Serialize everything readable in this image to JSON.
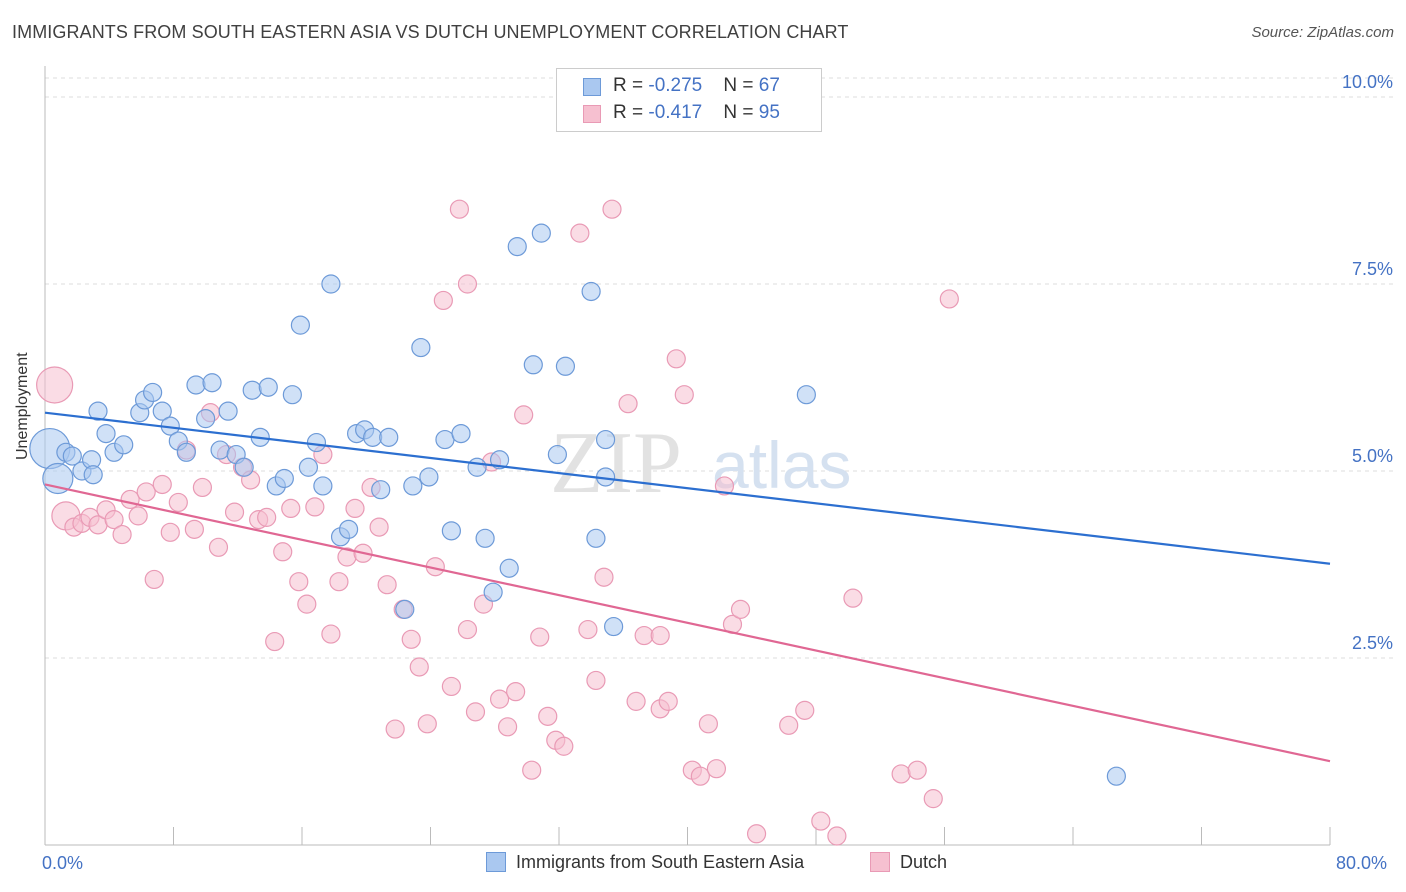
{
  "title": "IMMIGRANTS FROM SOUTH EASTERN ASIA VS DUTCH UNEMPLOYMENT CORRELATION CHART",
  "source": "Source: ZipAtlas.com",
  "watermark": {
    "zip": "ZIP",
    "atlas": "atlas"
  },
  "legend": {
    "rows": [
      {
        "r_label": "R = ",
        "r_value": "-0.275",
        "n_label": "N = ",
        "n_value": "67"
      },
      {
        "r_label": "R = ",
        "r_value": "-0.417",
        "n_label": "N = ",
        "n_value": "95"
      }
    ]
  },
  "bottom_legend": {
    "series1": "Immigrants from South Eastern Asia",
    "series2": "Dutch"
  },
  "colors": {
    "blue_fill": "#aac8f0",
    "blue_stroke": "#6d9ad8",
    "blue_line": "#2c6fd0",
    "pink_fill": "#f6c0d0",
    "pink_stroke": "#e99ab5",
    "pink_line": "#e06793",
    "axis_text": "#4472c4"
  },
  "chart_data": {
    "type": "scatter",
    "title": "IMMIGRANTS FROM SOUTH EASTERN ASIA VS DUTCH UNEMPLOYMENT CORRELATION CHART",
    "xlabel": "",
    "ylabel": "Unemployment",
    "xlim": [
      0,
      80
    ],
    "ylim": [
      0,
      10.5
    ],
    "x_tick_labels": [
      "0.0%",
      "80.0%"
    ],
    "y_ticks": [
      2.5,
      5.0,
      7.5,
      10.0
    ],
    "y_tick_labels": [
      "2.5%",
      "5.0%",
      "7.5%",
      "10.0%"
    ],
    "grid": "horizontal dashed",
    "legend_position": "top-center",
    "series": [
      {
        "name": "Immigrants from South Eastern Asia",
        "R": -0.275,
        "N": 67,
        "trend": {
          "x0": 0,
          "y0": 5.78,
          "x1": 80,
          "y1": 3.76
        },
        "points": [
          [
            0.3,
            5.3
          ],
          [
            0.8,
            4.9
          ],
          [
            1.3,
            5.25
          ],
          [
            1.7,
            5.2
          ],
          [
            2.3,
            5.0
          ],
          [
            2.9,
            5.15
          ],
          [
            3.3,
            5.8
          ],
          [
            3.8,
            5.5
          ],
          [
            4.3,
            5.25
          ],
          [
            4.9,
            5.35
          ],
          [
            5.9,
            5.78
          ],
          [
            6.2,
            5.95
          ],
          [
            6.7,
            6.05
          ],
          [
            7.3,
            5.8
          ],
          [
            7.8,
            5.6
          ],
          [
            8.3,
            5.4
          ],
          [
            8.8,
            5.25
          ],
          [
            9.4,
            6.15
          ],
          [
            10.0,
            5.7
          ],
          [
            10.4,
            6.18
          ],
          [
            10.9,
            5.28
          ],
          [
            11.4,
            5.8
          ],
          [
            11.9,
            5.22
          ],
          [
            12.4,
            5.05
          ],
          [
            12.9,
            6.08
          ],
          [
            13.4,
            5.45
          ],
          [
            13.9,
            6.12
          ],
          [
            14.4,
            4.8
          ],
          [
            14.9,
            4.9
          ],
          [
            15.4,
            6.02
          ],
          [
            15.9,
            6.95
          ],
          [
            16.4,
            5.05
          ],
          [
            16.9,
            5.38
          ],
          [
            17.3,
            4.8
          ],
          [
            17.8,
            7.5
          ],
          [
            18.4,
            4.12
          ],
          [
            18.9,
            4.22
          ],
          [
            19.4,
            5.5
          ],
          [
            19.9,
            5.55
          ],
          [
            20.4,
            5.45
          ],
          [
            20.9,
            4.75
          ],
          [
            21.4,
            5.45
          ],
          [
            22.4,
            3.15
          ],
          [
            22.9,
            4.8
          ],
          [
            23.4,
            6.65
          ],
          [
            23.9,
            4.92
          ],
          [
            24.9,
            5.42
          ],
          [
            25.3,
            4.2
          ],
          [
            25.9,
            5.5
          ],
          [
            26.9,
            5.05
          ],
          [
            27.4,
            4.1
          ],
          [
            27.9,
            3.38
          ],
          [
            28.3,
            5.15
          ],
          [
            28.9,
            3.7
          ],
          [
            29.4,
            8.0
          ],
          [
            30.4,
            6.42
          ],
          [
            30.9,
            8.18
          ],
          [
            31.9,
            5.22
          ],
          [
            32.4,
            6.4
          ],
          [
            34.0,
            7.4
          ],
          [
            34.3,
            4.1
          ],
          [
            34.9,
            5.42
          ],
          [
            34.9,
            4.92
          ],
          [
            35.4,
            2.92
          ],
          [
            47.4,
            6.02
          ],
          [
            66.7,
            0.92
          ],
          [
            3.0,
            4.95
          ]
        ]
      },
      {
        "name": "Dutch",
        "R": -0.417,
        "N": 95,
        "trend": {
          "x0": 0,
          "y0": 4.82,
          "x1": 80,
          "y1": 1.12
        },
        "points": [
          [
            0.6,
            6.15
          ],
          [
            1.3,
            4.4
          ],
          [
            1.8,
            4.25
          ],
          [
            2.3,
            4.3
          ],
          [
            2.8,
            4.38
          ],
          [
            3.3,
            4.28
          ],
          [
            3.8,
            4.48
          ],
          [
            4.3,
            4.35
          ],
          [
            4.8,
            4.15
          ],
          [
            5.3,
            4.62
          ],
          [
            5.8,
            4.4
          ],
          [
            6.3,
            4.72
          ],
          [
            6.8,
            3.55
          ],
          [
            7.3,
            4.82
          ],
          [
            7.8,
            4.18
          ],
          [
            8.3,
            4.58
          ],
          [
            8.8,
            5.28
          ],
          [
            9.3,
            4.22
          ],
          [
            9.8,
            4.78
          ],
          [
            10.3,
            5.78
          ],
          [
            10.8,
            3.98
          ],
          [
            11.3,
            5.22
          ],
          [
            11.8,
            4.45
          ],
          [
            12.3,
            5.05
          ],
          [
            12.8,
            4.88
          ],
          [
            13.3,
            4.35
          ],
          [
            13.8,
            4.38
          ],
          [
            14.3,
            2.72
          ],
          [
            14.8,
            3.92
          ],
          [
            15.3,
            4.5
          ],
          [
            15.8,
            3.52
          ],
          [
            16.3,
            3.22
          ],
          [
            16.8,
            4.52
          ],
          [
            17.3,
            5.22
          ],
          [
            17.8,
            2.82
          ],
          [
            18.3,
            3.52
          ],
          [
            18.8,
            3.85
          ],
          [
            19.3,
            4.5
          ],
          [
            19.8,
            3.9
          ],
          [
            20.3,
            4.78
          ],
          [
            20.8,
            4.25
          ],
          [
            21.3,
            3.48
          ],
          [
            21.8,
            1.55
          ],
          [
            22.3,
            3.15
          ],
          [
            22.8,
            2.75
          ],
          [
            23.3,
            2.38
          ],
          [
            23.8,
            1.62
          ],
          [
            24.3,
            3.72
          ],
          [
            24.8,
            7.28
          ],
          [
            25.3,
            2.12
          ],
          [
            25.8,
            8.5
          ],
          [
            26.3,
            7.5
          ],
          [
            26.8,
            1.78
          ],
          [
            27.3,
            3.22
          ],
          [
            27.8,
            5.12
          ],
          [
            28.3,
            1.95
          ],
          [
            28.8,
            1.58
          ],
          [
            29.3,
            2.05
          ],
          [
            29.8,
            5.75
          ],
          [
            30.3,
            1.0
          ],
          [
            30.8,
            2.78
          ],
          [
            31.3,
            1.72
          ],
          [
            31.8,
            1.4
          ],
          [
            32.3,
            1.32
          ],
          [
            33.3,
            8.18
          ],
          [
            33.8,
            2.88
          ],
          [
            34.3,
            2.2
          ],
          [
            34.8,
            3.58
          ],
          [
            35.3,
            8.5
          ],
          [
            36.3,
            5.9
          ],
          [
            36.8,
            1.92
          ],
          [
            37.3,
            2.8
          ],
          [
            38.3,
            1.82
          ],
          [
            38.8,
            1.92
          ],
          [
            39.3,
            6.5
          ],
          [
            39.8,
            6.02
          ],
          [
            40.3,
            1.0
          ],
          [
            40.8,
            0.92
          ],
          [
            41.3,
            1.62
          ],
          [
            41.8,
            1.02
          ],
          [
            42.3,
            4.8
          ],
          [
            42.8,
            2.95
          ],
          [
            43.3,
            3.15
          ],
          [
            44.3,
            0.15
          ],
          [
            46.3,
            1.6
          ],
          [
            47.3,
            1.8
          ],
          [
            48.3,
            0.32
          ],
          [
            49.3,
            0.12
          ],
          [
            50.3,
            3.3
          ],
          [
            53.3,
            0.95
          ],
          [
            54.3,
            1.0
          ],
          [
            55.3,
            0.62
          ],
          [
            56.3,
            7.3
          ],
          [
            38.3,
            2.8
          ],
          [
            26.3,
            2.88
          ]
        ]
      }
    ]
  }
}
